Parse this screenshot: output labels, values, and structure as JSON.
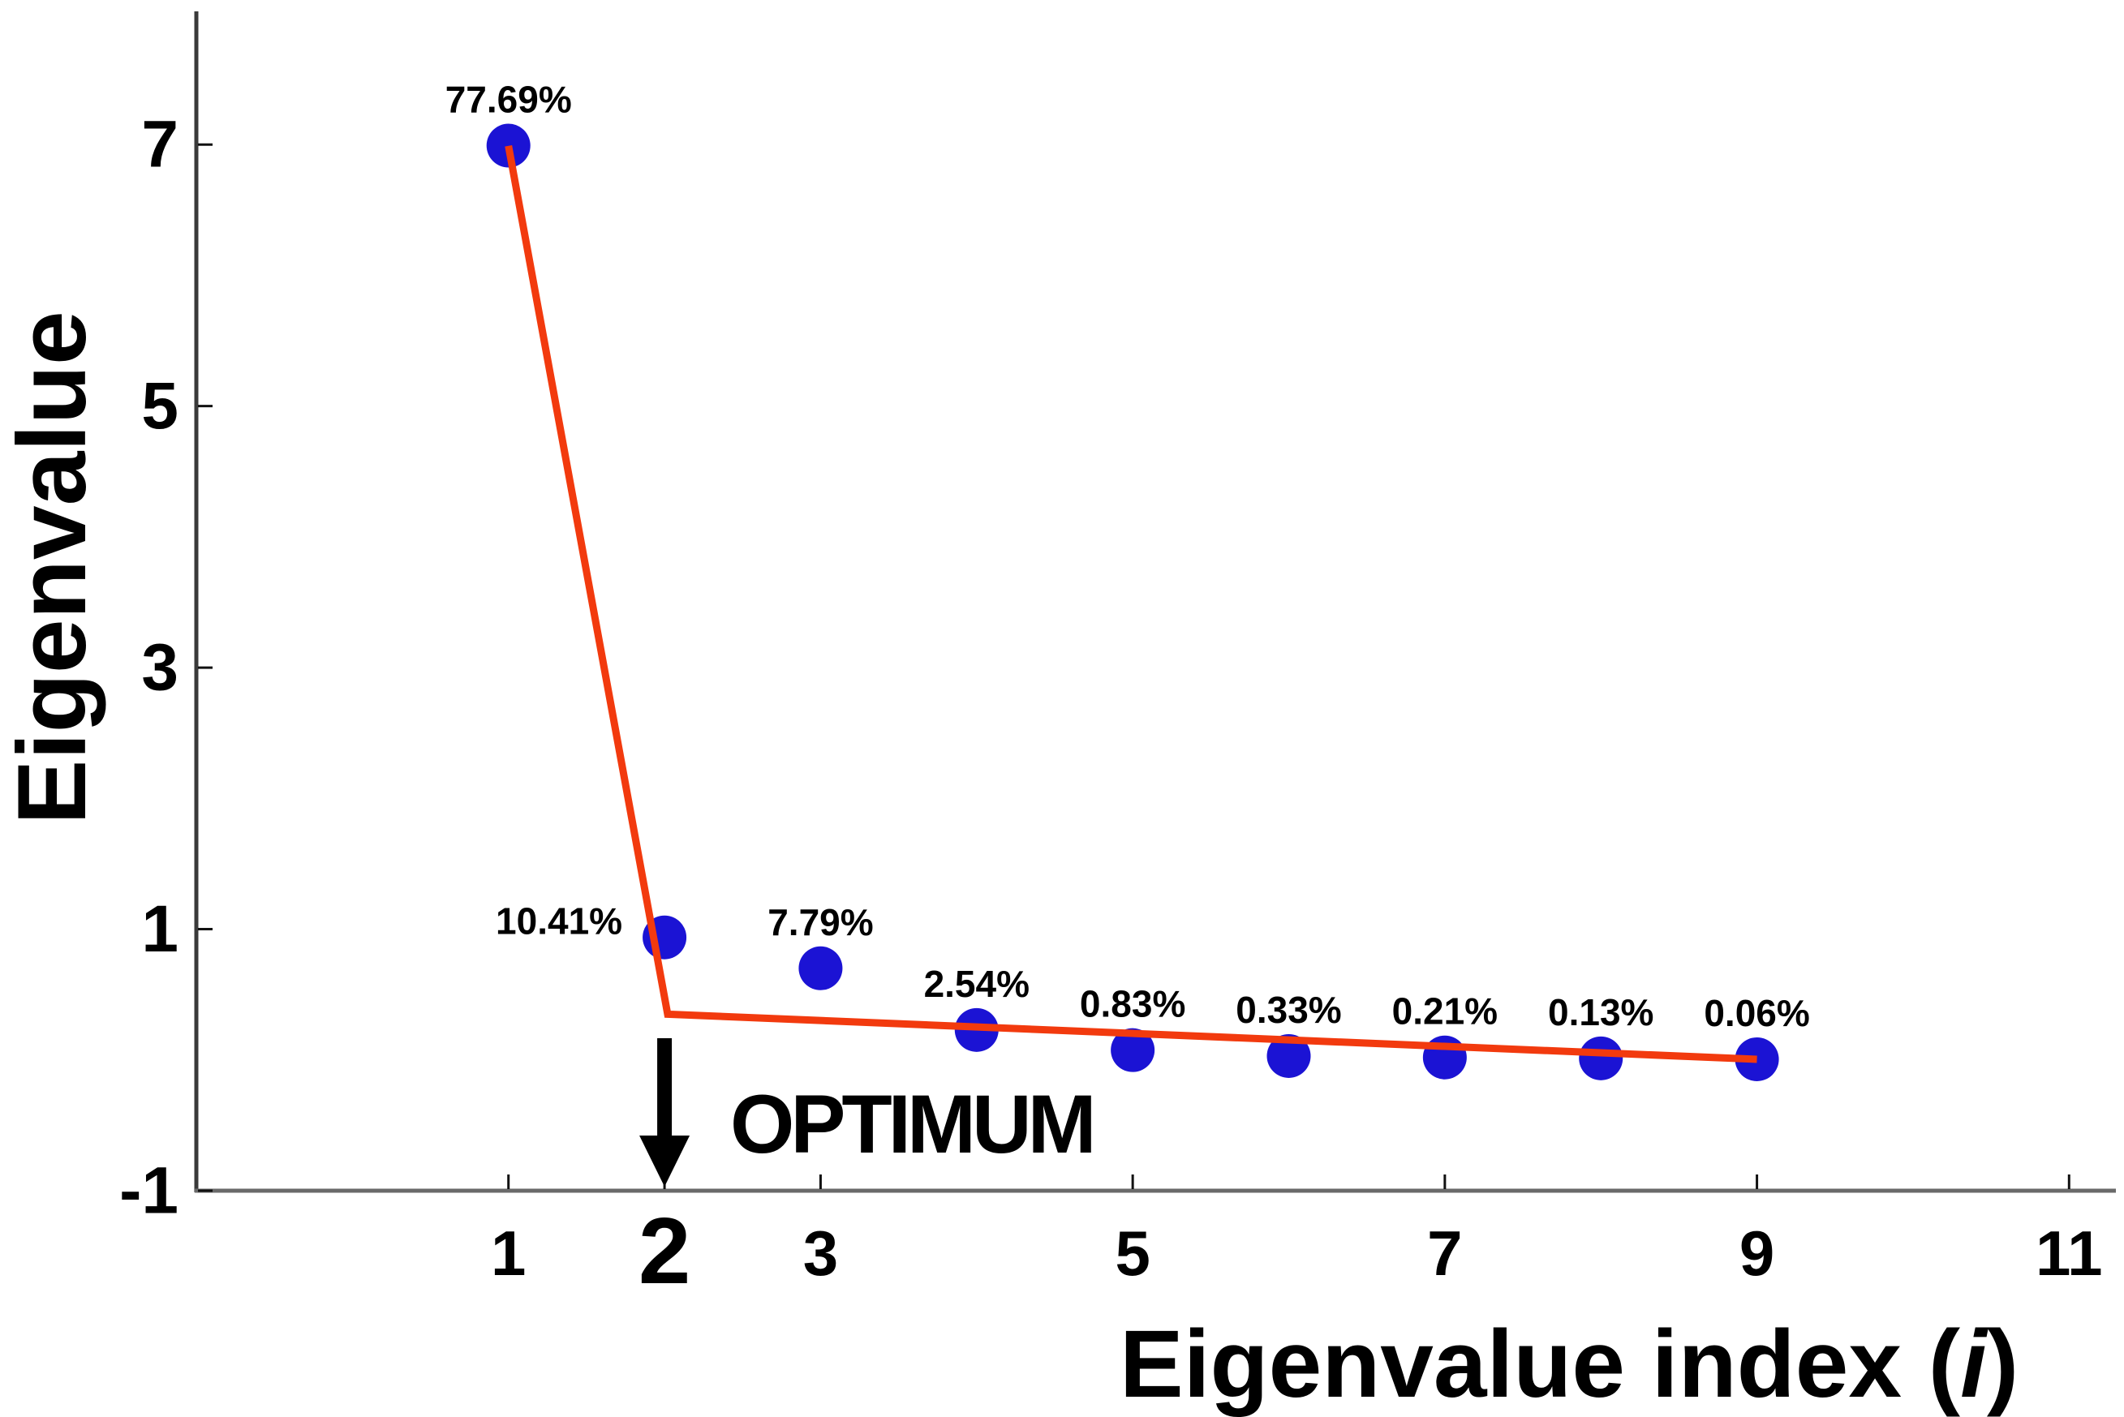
{
  "figure": {
    "background": "#ffffff",
    "ylabel": "Eigenvalue",
    "xlabel_full": "Eigenvalue index (i)",
    "xlabel_prefix": "Eigenvalue index (",
    "xlabel_italic_var": "i",
    "xlabel_suffix": ")",
    "annotation": {
      "label": "OPTIMUM",
      "arrow_icon": "down-arrow",
      "points_to_index": 2
    }
  },
  "chart_data": {
    "type": "scatter",
    "title": "",
    "xlabel": "Eigenvalue index (i)",
    "ylabel": "Eigenvalue",
    "x": [
      1,
      2,
      3,
      4,
      5,
      6,
      7,
      8,
      9
    ],
    "eigenvalues": [
      6.992,
      0.937,
      0.701,
      0.229,
      0.075,
      0.03,
      0.019,
      0.012,
      0.005
    ],
    "percent_labels": [
      "77.69%",
      "10.41%",
      "7.79%",
      "2.54%",
      "0.83%",
      "0.33%",
      "0.21%",
      "0.13%",
      "0.06%"
    ],
    "label_side": [
      "above",
      "left",
      "above",
      "above",
      "above",
      "above",
      "above",
      "above",
      "above"
    ],
    "x_ticks": [
      1,
      2,
      3,
      5,
      7,
      9,
      11
    ],
    "y_ticks": [
      -1,
      1,
      3,
      5,
      7
    ],
    "xlim": [
      -1,
      11.3
    ],
    "ylim": [
      -1,
      8
    ],
    "grid": false,
    "legend_position": "none",
    "optimum_index": 2,
    "trend_line": {
      "shape": "segmented-linear-fit",
      "points": [
        [
          1,
          6.99
        ],
        [
          2.02,
          0.35
        ],
        [
          9,
          0.005
        ]
      ],
      "color": "#f23a0e"
    },
    "marker_color": "#1b13d4",
    "highlight_tick_color": "#1540d0",
    "annotation_color": "#000000",
    "axis_color": "#4a4a4a"
  }
}
